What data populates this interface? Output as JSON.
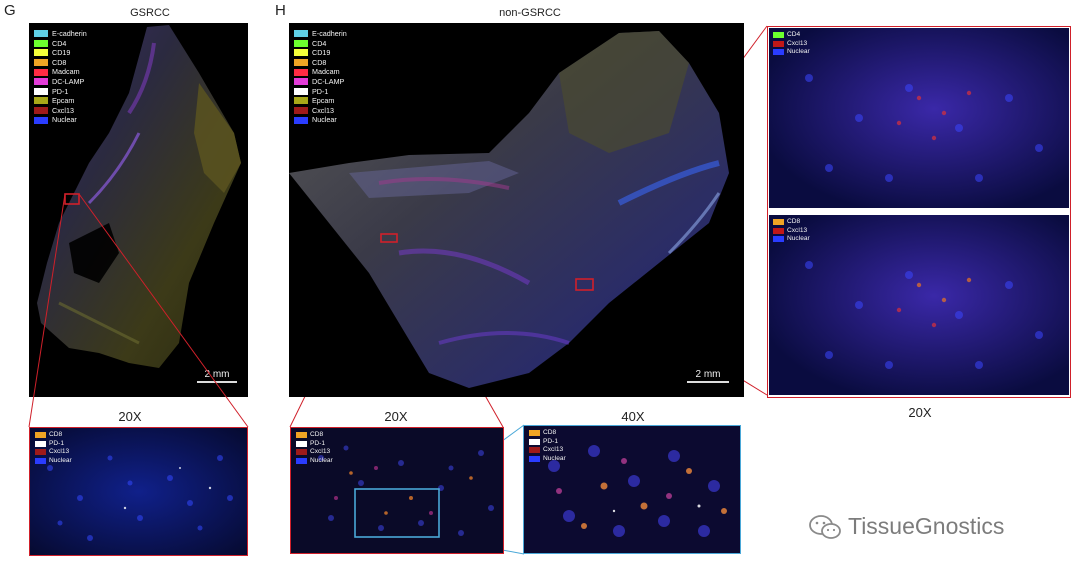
{
  "panel_g": {
    "letter": "G",
    "title": "GSRCC",
    "scale": "2 mm",
    "zoom_label": "20X",
    "legend": [
      {
        "label": "E-cadherin",
        "color": "#5fd0e6"
      },
      {
        "label": "CD4",
        "color": "#6cff2e"
      },
      {
        "label": "CD19",
        "color": "#f4ff3a"
      },
      {
        "label": "CD8",
        "color": "#f0a424"
      },
      {
        "label": "Madcam",
        "color": "#ff2b43"
      },
      {
        "label": "DC-LAMP",
        "color": "#e33bd8"
      },
      {
        "label": "PD-1",
        "color": "#ffffff"
      },
      {
        "label": "Epcam",
        "color": "#a8a818"
      },
      {
        "label": "Cxcl13",
        "color": "#9e1a1a"
      },
      {
        "label": "Nuclear",
        "color": "#2a3cff"
      }
    ],
    "zoom_legend": [
      {
        "label": "CD8",
        "color": "#f0a424"
      },
      {
        "label": "PD-1",
        "color": "#ffffff"
      },
      {
        "label": "Cxcl13",
        "color": "#9e1a1a"
      },
      {
        "label": "Nuclear",
        "color": "#2a3cff"
      }
    ]
  },
  "panel_h": {
    "letter": "H",
    "title": "non-GSRCC",
    "scale": "2 mm",
    "zoom1_label": "20X",
    "zoom2_label": "40X",
    "right_label": "20X",
    "legend": [
      {
        "label": "E-cadherin",
        "color": "#5fd0e6"
      },
      {
        "label": "CD4",
        "color": "#6cff2e"
      },
      {
        "label": "CD19",
        "color": "#f4ff3a"
      },
      {
        "label": "CD8",
        "color": "#f0a424"
      },
      {
        "label": "Madcam",
        "color": "#ff2b43"
      },
      {
        "label": "DC-LAMP",
        "color": "#e33bd8"
      },
      {
        "label": "PD-1",
        "color": "#ffffff"
      },
      {
        "label": "Epcam",
        "color": "#a8a818"
      },
      {
        "label": "Cxcl13",
        "color": "#9e1a1a"
      },
      {
        "label": "Nuclear",
        "color": "#2a3cff"
      }
    ],
    "zoom1_legend": [
      {
        "label": "CD8",
        "color": "#f0a424"
      },
      {
        "label": "PD-1",
        "color": "#ffffff"
      },
      {
        "label": "Cxcl13",
        "color": "#9e1a1a"
      },
      {
        "label": "Nuclear",
        "color": "#2a3cff"
      }
    ],
    "zoom2_legend": [
      {
        "label": "CD8",
        "color": "#f0a424"
      },
      {
        "label": "PD-1",
        "color": "#ffffff"
      },
      {
        "label": "Cxcl13",
        "color": "#9e1a1a"
      },
      {
        "label": "Nuclear",
        "color": "#2a3cff"
      }
    ],
    "right_top_legend": [
      {
        "label": "CD4",
        "color": "#6cff2e"
      },
      {
        "label": "Cxcl13",
        "color": "#c01818"
      },
      {
        "label": "Nuclear",
        "color": "#2a3cff"
      }
    ],
    "right_bottom_legend": [
      {
        "label": "CD8",
        "color": "#f0a424"
      },
      {
        "label": "Cxcl13",
        "color": "#c01818"
      },
      {
        "label": "Nuclear",
        "color": "#2a3cff"
      }
    ]
  },
  "watermark": {
    "text": "TissueGnostics",
    "icon": "wechat-icon"
  },
  "colors": {
    "zoom_box_red": "#d0202a",
    "zoom_box_blue": "#4aa8d8",
    "tissue_bg": "#000000"
  }
}
